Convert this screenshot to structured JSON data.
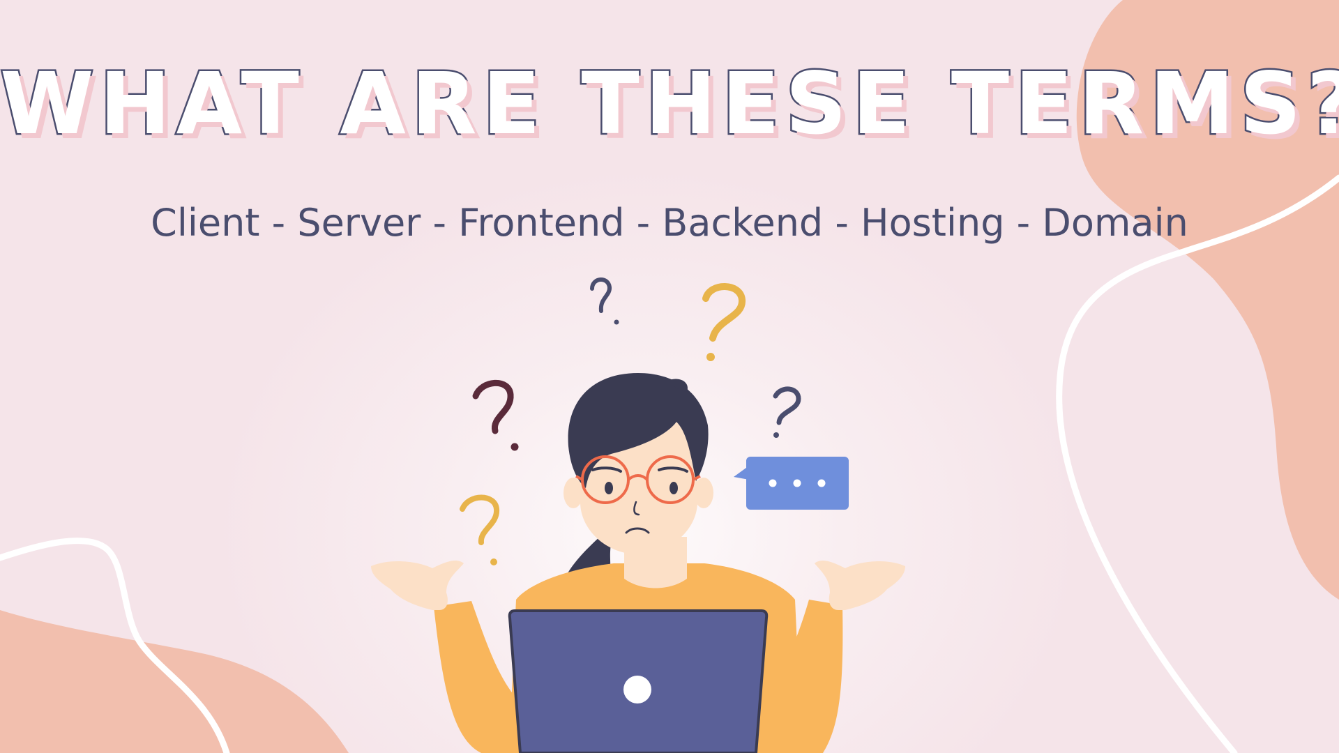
{
  "title": "WHAT ARE THESE TERMS?",
  "subtitle": "Client - Server - Frontend - Backend - Hosting - Domain",
  "colors": {
    "background": "#f7e7ec",
    "blob": "#f2bfae",
    "title_outline": "#4a4d6e",
    "title_shadow": "#f2c8cf",
    "sweater": "#f9b65c",
    "laptop": "#5a6098",
    "speech_bubble": "#6f8fdc",
    "question_yellow": "#e8b44a",
    "question_navy": "#4a4d6e",
    "question_maroon": "#5a2a3a"
  },
  "icons": {
    "speech_bubble": "speech-bubble-ellipsis-icon",
    "question_mark": "question-mark-icon",
    "laptop_logo": "laptop-logo-icon"
  }
}
